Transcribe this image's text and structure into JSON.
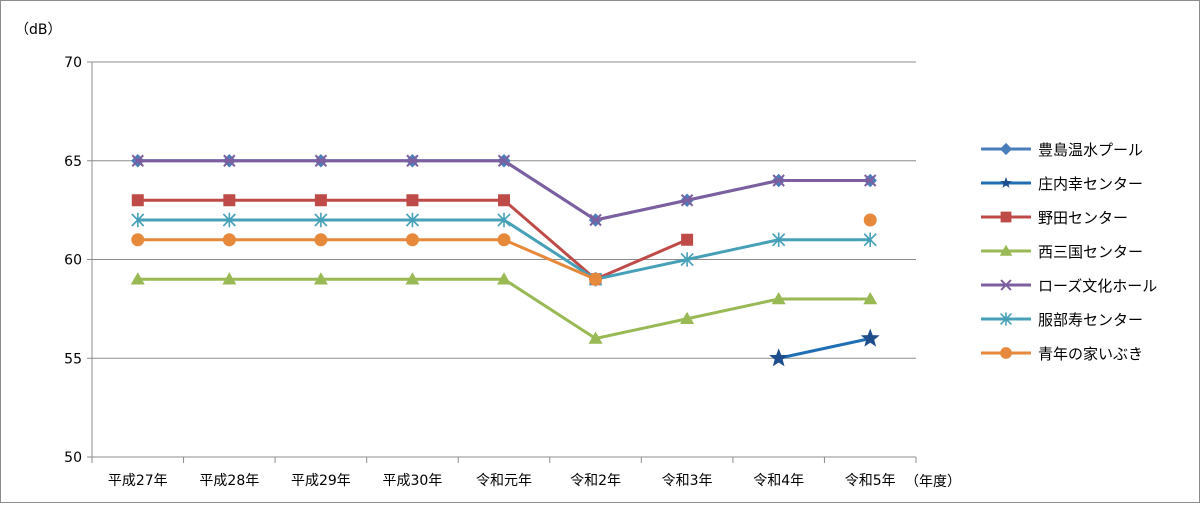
{
  "chart_data": {
    "type": "line",
    "title": "",
    "ylabel": "（dB）",
    "xlabel": "（年度）",
    "ylim": [
      50,
      70
    ],
    "yticks": [
      50,
      55,
      60,
      65,
      70
    ],
    "grid": true,
    "legend_position": "right",
    "categories": [
      "平成27年",
      "平成28年",
      "平成29年",
      "平成30年",
      "令和元年",
      "令和2年",
      "令和3年",
      "令和4年",
      "令和5年"
    ],
    "series": [
      {
        "name": "豊島温水プール",
        "color": "#4a7ebb",
        "marker": "diamond",
        "values": [
          65,
          65,
          65,
          65,
          65,
          62,
          63,
          64,
          64
        ]
      },
      {
        "name": "庄内幸センター",
        "color": "#1f6fb5",
        "marker": "star",
        "values": [
          null,
          null,
          null,
          null,
          null,
          null,
          null,
          55,
          56
        ]
      },
      {
        "name": "野田センター",
        "color": "#be4b48",
        "marker": "square",
        "values": [
          63,
          63,
          63,
          63,
          63,
          59,
          61,
          null,
          null
        ]
      },
      {
        "name": "西三国センター",
        "color": "#98b954",
        "marker": "triangle",
        "values": [
          59,
          59,
          59,
          59,
          59,
          56,
          57,
          58,
          58
        ]
      },
      {
        "name": "ローズ文化ホール",
        "color": "#7d5fa0",
        "marker": "x",
        "values": [
          65,
          65,
          65,
          65,
          65,
          62,
          63,
          64,
          64
        ]
      },
      {
        "name": "服部寿センター",
        "color": "#46a0b8",
        "marker": "asterisk",
        "values": [
          62,
          62,
          62,
          62,
          62,
          59,
          60,
          61,
          61
        ]
      },
      {
        "name": "青年の家いぶき",
        "color": "#e6893b",
        "marker": "circle",
        "values": [
          61,
          61,
          61,
          61,
          61,
          59,
          null,
          null,
          62
        ]
      }
    ]
  }
}
